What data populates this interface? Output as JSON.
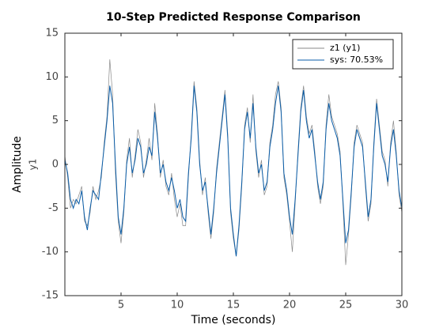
{
  "chart_data": {
    "type": "line",
    "title": "10-Step Predicted Response Comparison",
    "xlabel": "Time (seconds)",
    "ylabel": "Amplitude",
    "channel_label": "y1",
    "xlim": [
      0,
      30
    ],
    "xticks": [
      5,
      10,
      15,
      20,
      25,
      30
    ],
    "ylim": [
      -15,
      15
    ],
    "yticks": [
      -15,
      -10,
      -5,
      0,
      5,
      10,
      15
    ],
    "legend": "top-right",
    "x": [
      0,
      0.25,
      0.5,
      0.75,
      1,
      1.25,
      1.5,
      1.75,
      2,
      2.25,
      2.5,
      2.75,
      3,
      3.25,
      3.5,
      3.75,
      4,
      4.25,
      4.5,
      4.75,
      5,
      5.25,
      5.5,
      5.75,
      6,
      6.25,
      6.5,
      6.75,
      7,
      7.25,
      7.5,
      7.75,
      8,
      8.25,
      8.5,
      8.75,
      9,
      9.25,
      9.5,
      9.75,
      10,
      10.25,
      10.5,
      10.75,
      11,
      11.25,
      11.5,
      11.75,
      12,
      12.25,
      12.5,
      12.75,
      13,
      13.25,
      13.5,
      13.75,
      14,
      14.25,
      14.5,
      14.75,
      15,
      15.25,
      15.5,
      15.75,
      16,
      16.25,
      16.5,
      16.75,
      17,
      17.25,
      17.5,
      17.75,
      18,
      18.25,
      18.5,
      18.75,
      19,
      19.25,
      19.5,
      19.75,
      20,
      20.25,
      20.5,
      20.75,
      21,
      21.25,
      21.5,
      21.75,
      22,
      22.25,
      22.5,
      22.75,
      23,
      23.25,
      23.5,
      23.75,
      24,
      24.25,
      24.5,
      24.75,
      25,
      25.25,
      25.5,
      25.75,
      26,
      26.25,
      26.5,
      26.75,
      27,
      27.25,
      27.5,
      27.75,
      28,
      28.25,
      28.5,
      28.75,
      29,
      29.25,
      29.5,
      29.75,
      30
    ],
    "series": [
      {
        "name": "z1 (y1)",
        "color": "#8a8a8a",
        "values": [
          1,
          -1.5,
          -5,
          -4,
          -4.5,
          -3.5,
          -2.5,
          -6.5,
          -7,
          -5.5,
          -2.5,
          -4,
          -3,
          -1.5,
          2.5,
          5.5,
          12,
          8,
          -1,
          -6.5,
          -9,
          -5.5,
          0.5,
          3,
          -1.5,
          1,
          4,
          2.5,
          -1.5,
          0.5,
          3,
          0.5,
          7,
          3.5,
          -1.5,
          0.5,
          -2.5,
          -3.5,
          -1,
          -4,
          -6,
          -4.5,
          -7,
          -7,
          -1.5,
          3.5,
          9.5,
          6.5,
          0.5,
          -3.5,
          -1.5,
          -5.5,
          -8.5,
          -5.5,
          -0.5,
          2.5,
          5.5,
          8.5,
          3.5,
          -5.5,
          -8.5,
          -10.5,
          -7.5,
          -2.5,
          4.5,
          6.5,
          2.5,
          8,
          1.5,
          -1.5,
          0.5,
          -3.5,
          -2.5,
          2.5,
          4.5,
          8,
          9.5,
          6.5,
          -1.5,
          -3.5,
          -6.5,
          -10,
          -4.5,
          1.5,
          6.5,
          9,
          5.5,
          3.5,
          4.5,
          1.5,
          -2.5,
          -4.5,
          -2.5,
          4.5,
          8,
          5.5,
          4.5,
          3.5,
          1.5,
          -4.5,
          -11.5,
          -8,
          -3.5,
          2.5,
          4.5,
          3.5,
          2.5,
          -2.5,
          -6.5,
          -4.5,
          2.5,
          7.5,
          4.5,
          1.5,
          0.5,
          -2.5,
          2.5,
          5,
          1.5,
          -3.5,
          -5.5
        ]
      },
      {
        "name": "sys: 70.53%",
        "color": "#0a5da8",
        "values": [
          0.5,
          -1,
          -4,
          -5,
          -4,
          -4.5,
          -3,
          -6,
          -7.5,
          -5,
          -3,
          -3.5,
          -4,
          -1,
          2,
          5,
          9,
          7,
          0,
          -6,
          -8,
          -5,
          0,
          2,
          -1,
          0.5,
          3,
          2,
          -1,
          0,
          2,
          1,
          6,
          3,
          -1,
          0,
          -2,
          -3,
          -1.5,
          -3,
          -5,
          -4,
          -6,
          -6.5,
          -1,
          3,
          9,
          6,
          0,
          -3,
          -2,
          -5,
          -8,
          -5,
          -1,
          2,
          5,
          8,
          3,
          -5,
          -8,
          -10.5,
          -7,
          -2,
          4,
          6,
          3,
          7,
          2,
          -1,
          0,
          -3,
          -2,
          2,
          4,
          7,
          9,
          6,
          -1,
          -3,
          -6,
          -8,
          -4,
          1,
          6,
          8.5,
          5,
          3,
          4,
          1,
          -2,
          -4,
          -2,
          4,
          7,
          5,
          4,
          3,
          1,
          -4,
          -9,
          -7.5,
          -3,
          2,
          4,
          3,
          2,
          -2,
          -6,
          -4,
          2,
          7,
          4,
          1,
          0,
          -2,
          2,
          4,
          1,
          -3,
          -5
        ]
      }
    ]
  }
}
